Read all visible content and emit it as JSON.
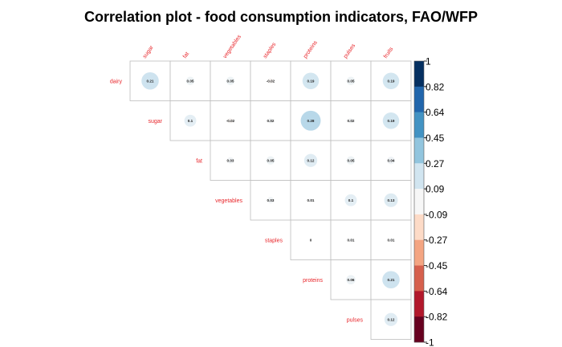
{
  "chart_data": {
    "type": "heatmap",
    "subtype": "correlation-upper-triangle",
    "title": "Correlation plot - food consumption indicators, FAO/WFP",
    "row_labels": [
      "dairy",
      "sugar",
      "fat",
      "vegetables",
      "staples",
      "proteins",
      "pulses"
    ],
    "col_labels": [
      "sugar",
      "fat",
      "vegetables",
      "staples",
      "proteins",
      "pulses",
      "fruits"
    ],
    "values": [
      [
        "0.21",
        "0.05",
        "0.05",
        "-0.02",
        "0.19",
        "0.05",
        "0.19"
      ],
      [
        null,
        "0.1",
        "-0.02",
        "0.02",
        "0.28",
        "0.02",
        "0.19"
      ],
      [
        null,
        null,
        "0.03",
        "0.05",
        "0.12",
        "0.05",
        "0.04"
      ],
      [
        null,
        null,
        null,
        "0.03",
        "0.01",
        "0.1",
        "0.13"
      ],
      [
        null,
        null,
        null,
        null,
        "0",
        "0.01",
        "0.01"
      ],
      [
        null,
        null,
        null,
        null,
        null,
        "0.06",
        "0.21"
      ],
      [
        null,
        null,
        null,
        null,
        null,
        null,
        "0.12"
      ]
    ],
    "colorbar": {
      "range": [
        -1,
        1
      ],
      "ticks": [
        "1",
        "0.82",
        "0.64",
        "0.45",
        "0.27",
        "0.09",
        "-0.09",
        "-0.27",
        "-0.45",
        "-0.64",
        "-0.82",
        "-1"
      ],
      "colors": [
        "#053061",
        "#2166ac",
        "#4393c3",
        "#92c5de",
        "#d1e5f0",
        "#f7f7f7",
        "#fddbc7",
        "#f4a582",
        "#d6604d",
        "#b2182b",
        "#67001f"
      ]
    },
    "label_color": "#e8262b",
    "grid": true
  }
}
